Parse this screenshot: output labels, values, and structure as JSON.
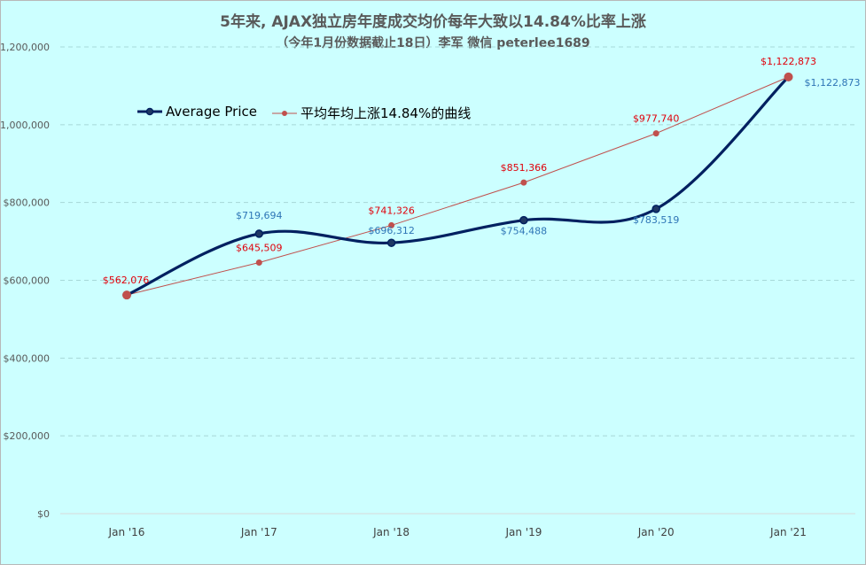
{
  "chart_data": {
    "type": "line",
    "title": "5年来, AJAX独立房年度成交均价每年大致以14.84%比率上涨",
    "subtitle": "（今年1月份数据截止18日）李军 微信 peterlee1689",
    "categories": [
      "Jan '16",
      "Jan '17",
      "Jan '18",
      "Jan '19",
      "Jan '20",
      "Jan '21"
    ],
    "series": [
      {
        "name": "Average Price",
        "values": [
          562076,
          719694,
          696312,
          754488,
          783519,
          1122873
        ],
        "labels": [
          "",
          "$719,694",
          "$696,312",
          "$754,488",
          "$783,519",
          "$1,122,873"
        ],
        "color": "#002060",
        "label_color": "#2e75b6",
        "smooth": true
      },
      {
        "name": "平均年均上涨14.84%的曲线",
        "values": [
          562076,
          645509,
          741326,
          851366,
          977740,
          1122873
        ],
        "labels": [
          "$562,076",
          "$645,509",
          "$741,326",
          "$851,366",
          "$977,740",
          "$1,122,873"
        ],
        "color": "#c0504d",
        "label_color": "#e0000a",
        "smooth": false
      }
    ],
    "ylim": [
      0,
      1200000
    ],
    "yticks": [
      "$0",
      "$200,000",
      "$400,000",
      "$600,000",
      "$800,000",
      "$1,000,000",
      "$1,200,000"
    ],
    "ytick_values": [
      0,
      200000,
      400000,
      600000,
      800000,
      1000000,
      1200000
    ],
    "grid": "horizontal dashed",
    "legend_position": "top-left",
    "background": "#ccffff",
    "grid_color": "#a6d8d8"
  },
  "legend": {
    "series1": "Average Price",
    "series2": "平均年均上涨14.84%的曲线"
  }
}
